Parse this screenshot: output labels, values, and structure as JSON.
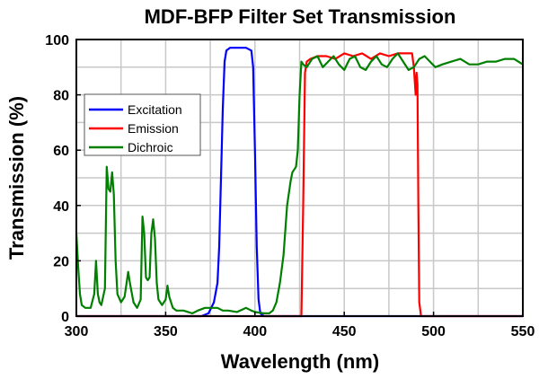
{
  "chart_data": {
    "type": "line",
    "title": "MDF-BFP Filter Set Transmission",
    "xlabel": "Wavelength (nm)",
    "ylabel": "Transmission (%)",
    "xlim": [
      300,
      550
    ],
    "ylim": [
      0,
      100
    ],
    "xticks": [
      300,
      350,
      400,
      450,
      500,
      550
    ],
    "yticks": [
      0,
      20,
      40,
      60,
      80,
      100
    ],
    "grid": true,
    "legend_position": "upper-left",
    "series": [
      {
        "name": "Excitation",
        "color": "#0000ff",
        "x": [
          300,
          370,
          374,
          377,
          379,
          380,
          381,
          382,
          383,
          384,
          386,
          390,
          395,
          398,
          399,
          400,
          401,
          402,
          403,
          405,
          550
        ],
        "y": [
          0,
          0,
          1,
          5,
          12,
          25,
          50,
          75,
          92,
          96,
          97,
          97,
          97,
          96,
          90,
          60,
          25,
          6,
          1,
          0,
          0
        ]
      },
      {
        "name": "Emission",
        "color": "#ff0000",
        "x": [
          300,
          426,
          427,
          428,
          429,
          431,
          435,
          440,
          445,
          450,
          455,
          460,
          465,
          470,
          475,
          480,
          485,
          488,
          489,
          490,
          490.5,
          491,
          491.5,
          492,
          493,
          550
        ],
        "y": [
          0,
          0,
          40,
          88,
          92,
          93,
          94,
          94,
          93,
          95,
          94,
          95,
          93,
          95,
          94,
          95,
          95,
          95,
          90,
          80,
          88,
          84,
          40,
          5,
          0,
          0
        ]
      },
      {
        "name": "Dichroic",
        "color": "#008000",
        "x": [
          300,
          301,
          302,
          303,
          305,
          308,
          310,
          311,
          312,
          313,
          314,
          316,
          317,
          318,
          319,
          320,
          321,
          322,
          323,
          325,
          327,
          329,
          330,
          332,
          334,
          336,
          337,
          338,
          339,
          340,
          341,
          342,
          343,
          344,
          345,
          346,
          348,
          350,
          351,
          352,
          354,
          356,
          360,
          365,
          368,
          372,
          375,
          379,
          382,
          385,
          390,
          395,
          398,
          400,
          405,
          408,
          410,
          412,
          414,
          416,
          418,
          420,
          421,
          422,
          423,
          424,
          425,
          426,
          427,
          429,
          432,
          435,
          438,
          441,
          444,
          447,
          450,
          453,
          456,
          459,
          462,
          465,
          468,
          471,
          474,
          477,
          480,
          483,
          486,
          489,
          492,
          495,
          498,
          501,
          505,
          510,
          515,
          520,
          525,
          530,
          535,
          540,
          545,
          550
        ],
        "y": [
          30,
          18,
          8,
          4,
          3,
          3,
          8,
          20,
          8,
          5,
          4,
          10,
          54,
          46,
          45,
          52,
          44,
          20,
          8,
          5,
          7,
          16,
          12,
          5,
          3,
          6,
          36,
          30,
          14,
          13,
          14,
          30,
          35,
          28,
          12,
          6,
          4,
          6,
          11,
          7,
          3,
          2,
          2,
          1,
          2,
          3,
          3,
          3,
          2,
          2,
          1.5,
          3,
          2,
          1.5,
          1,
          1,
          2,
          5,
          12,
          22,
          40,
          49,
          52,
          53,
          54,
          60,
          80,
          92,
          91,
          90,
          93,
          94,
          90,
          92,
          94,
          91,
          89,
          93,
          94,
          90,
          89,
          92,
          94,
          91,
          90,
          93,
          95,
          92,
          89,
          90,
          93,
          94,
          92,
          90,
          91,
          92,
          93,
          91,
          91,
          92,
          92,
          93,
          93,
          91
        ]
      }
    ]
  }
}
